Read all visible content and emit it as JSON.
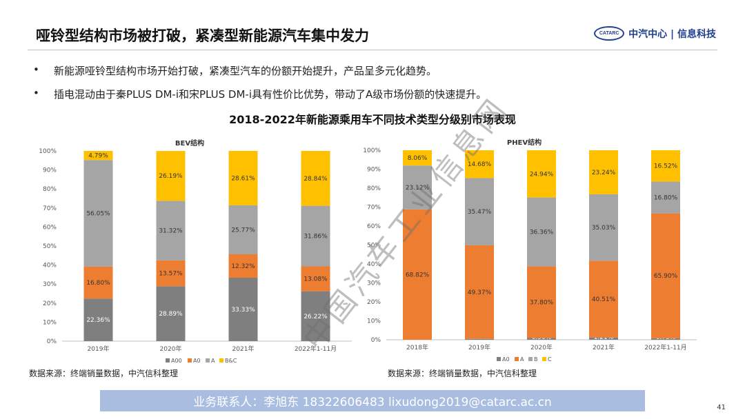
{
  "title": "哑铃型结构市场被打破，紧凑型新能源汽车集中发力",
  "logo": {
    "mark": "CATARC",
    "text": "中汽中心 | 信息科技"
  },
  "bullets": [
    "新能源哑铃型结构市场开始打破，紧凑型汽车的份额开始提升，产品呈多元化趋势。",
    "插电混动由于秦PLUS DM-i和宋PLUS DM-i具有性价比优势，带动了A级市场份额的快速提升。"
  ],
  "main_chart_title": "2018-2022年新能源乘用车不同技术类型分级别市场表现",
  "chart_data": [
    {
      "type": "bar",
      "stacked": true,
      "title": "BEV结构",
      "categories": [
        "2019年",
        "2020年",
        "2021年",
        "2022年1-11月"
      ],
      "series": [
        {
          "name": "A00",
          "color": "#7f7f7f",
          "values": [
            22.36,
            28.89,
            33.33,
            26.22
          ]
        },
        {
          "name": "A0",
          "color": "#ed7d31",
          "values": [
            16.8,
            13.57,
            12.32,
            13.08
          ]
        },
        {
          "name": "A",
          "color": "#a5a5a5",
          "values": [
            56.05,
            31.32,
            25.77,
            31.86
          ]
        },
        {
          "name": "B&C",
          "color": "#ffc000",
          "values": [
            4.79,
            26.19,
            28.61,
            28.84
          ]
        }
      ],
      "ylim": [
        0,
        100
      ],
      "yticks": [
        "0%",
        "10%",
        "20%",
        "30%",
        "40%",
        "50%",
        "60%",
        "70%",
        "80%",
        "90%",
        "100%"
      ],
      "legend": "bottom"
    },
    {
      "type": "bar",
      "stacked": true,
      "title": "PHEV结构",
      "categories": [
        "2018年",
        "2019年",
        "2020年",
        "2021年",
        "2022年1-11月"
      ],
      "series": [
        {
          "name": "A0",
          "color": "#7f7f7f",
          "values": [
            0.0,
            0.47,
            0.9,
            1.21,
            0.78
          ]
        },
        {
          "name": "A",
          "color": "#ed7d31",
          "values": [
            68.82,
            49.37,
            37.8,
            40.51,
            65.9
          ]
        },
        {
          "name": "B",
          "color": "#a5a5a5",
          "values": [
            23.12,
            35.47,
            36.36,
            35.03,
            16.8
          ]
        },
        {
          "name": "C",
          "color": "#ffc000",
          "values": [
            8.06,
            14.68,
            24.94,
            23.24,
            16.52
          ]
        }
      ],
      "ylim": [
        0,
        100
      ],
      "yticks": [
        "0%",
        "10%",
        "20%",
        "30%",
        "40%",
        "50%",
        "60%",
        "70%",
        "80%",
        "90%",
        "100%"
      ],
      "legend": "bottom"
    }
  ],
  "sources": [
    "数据来源：终端销量数据，中汽信科整理",
    "数据来源：终端销量数据，中汽信科整理"
  ],
  "watermark": "中国汽车工业信息网",
  "contact": "业务联系人：李旭东  18322606483  lixudong2019@catarc.ac.cn",
  "page_number": "41"
}
